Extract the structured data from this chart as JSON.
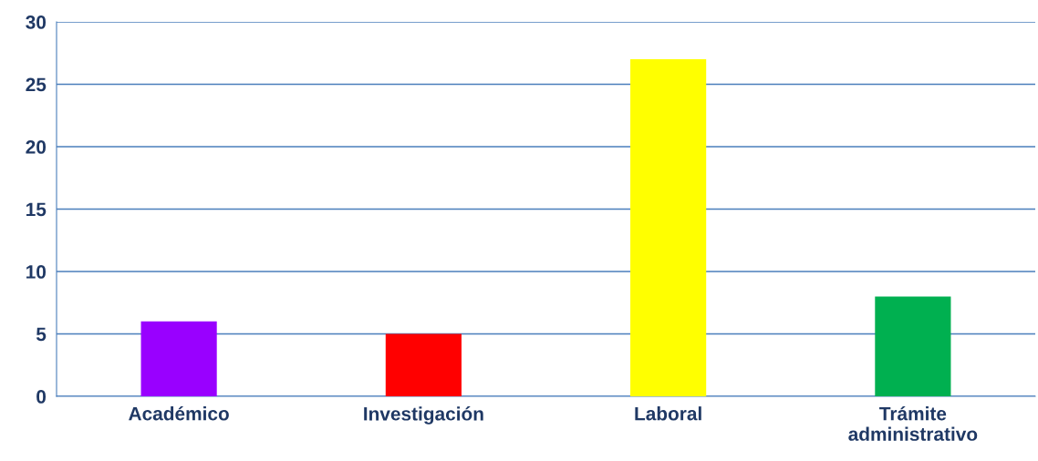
{
  "chart_data": {
    "type": "bar",
    "categories": [
      "Académico",
      "Investigación",
      "Laboral",
      "Trámite\nadministrativo"
    ],
    "values": [
      6,
      5,
      27,
      8
    ],
    "colors": [
      "#9900ff",
      "#ff0000",
      "#ffff00",
      "#00b050"
    ],
    "ylim": [
      0,
      30
    ],
    "yticks": [
      0,
      5,
      10,
      15,
      20,
      25,
      30
    ],
    "grid": "y",
    "legend": false
  }
}
